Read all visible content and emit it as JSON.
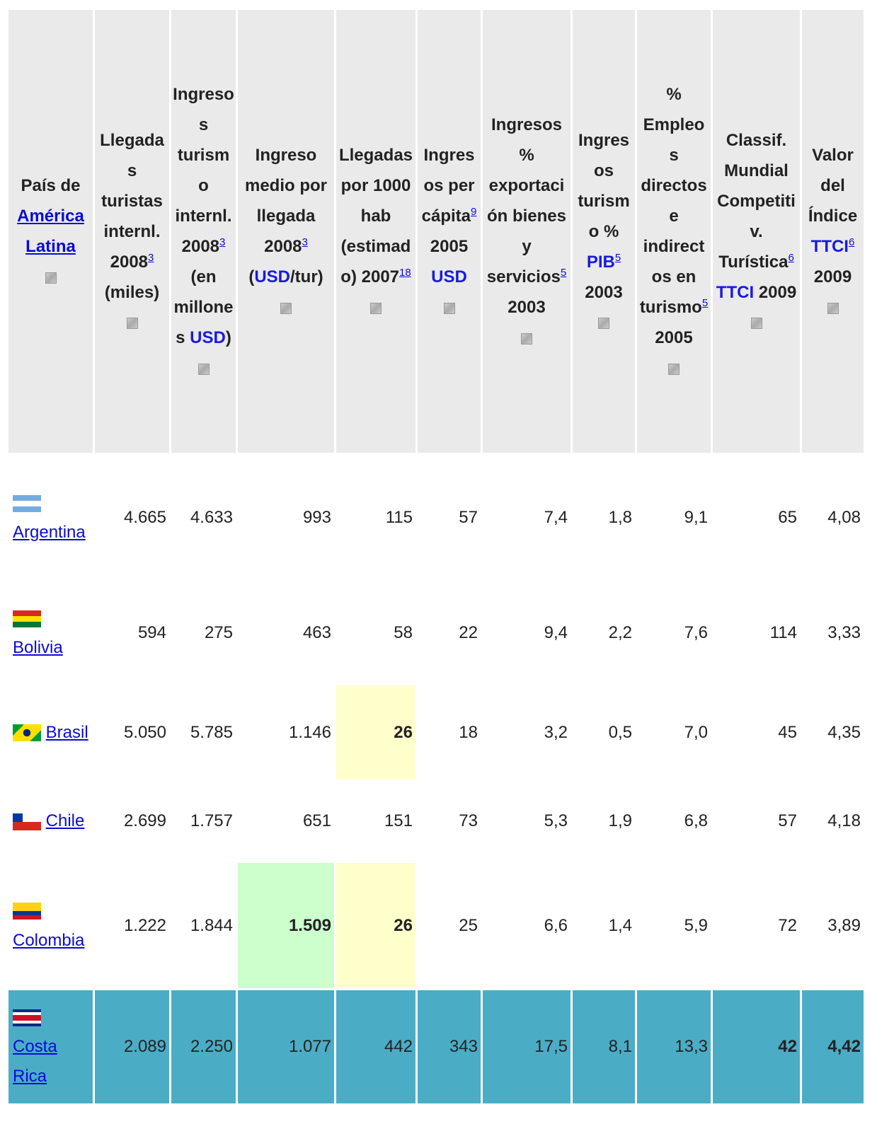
{
  "table": {
    "headers": [
      [
        {
          "text": "País de "
        },
        {
          "link": "América Latina"
        }
      ],
      [
        {
          "text": "Llegadas turistas internl. 2008"
        },
        {
          "ref": "3"
        },
        {
          "text": " (miles)"
        }
      ],
      [
        {
          "text": "Ingresos turismo internl. 2008"
        },
        {
          "ref": "3"
        },
        {
          "text": " (en millones "
        },
        {
          "link": "USD"
        },
        {
          "text": ")"
        }
      ],
      [
        {
          "text": "Ingreso medio por llegada 2008"
        },
        {
          "ref": "3"
        },
        {
          "text": " ("
        },
        {
          "link": "USD"
        },
        {
          "text": "/tur)"
        }
      ],
      [
        {
          "text": "Llegadas por 1000 hab (estimado) 2007"
        },
        {
          "ref": "1"
        },
        {
          "ref": "8"
        }
      ],
      [
        {
          "text": "Ingresos per cápita"
        },
        {
          "ref": "9"
        },
        {
          "text": " 2005 "
        },
        {
          "link": "USD"
        }
      ],
      [
        {
          "text": "Ingresos % exportación bienes y servicios"
        },
        {
          "ref": "5"
        },
        {
          "text": " 2003"
        }
      ],
      [
        {
          "text": "Ingresos turismo % "
        },
        {
          "link": "PIB"
        },
        {
          "ref": "5"
        },
        {
          "text": " 2003"
        }
      ],
      [
        {
          "text": "% Empleos directos e indirectos en turismo"
        },
        {
          "ref": "5"
        },
        {
          "text": " 2005"
        }
      ],
      [
        {
          "text": "Classif. Mundial Competitiv. Turística"
        },
        {
          "ref": "6"
        },
        {
          "link": "TTCI"
        },
        {
          "text": " 2009"
        }
      ],
      [
        {
          "text": "Valor del Índice "
        },
        {
          "link": "TTCI"
        },
        {
          "ref": "6"
        },
        {
          "text": " 2009"
        }
      ]
    ],
    "rows": [
      {
        "country": "Argentina",
        "cells": [
          "4.665",
          "4.633",
          "993",
          "115",
          "57",
          "7,4",
          "1,8",
          "9,1",
          "65",
          "4,08"
        ]
      },
      {
        "country": "Bolivia",
        "cells": [
          "594",
          "275",
          "463",
          "58",
          "22",
          "9,4",
          "2,2",
          "7,6",
          "114",
          "3,33"
        ]
      },
      {
        "country": "Brasil",
        "cells": [
          "5.050",
          "5.785",
          "1.146",
          "26",
          "18",
          "3,2",
          "0,5",
          "7,0",
          "45",
          "4,35"
        ],
        "cell_colors": [
          null,
          null,
          null,
          "#ffffcc",
          null,
          null,
          null,
          null,
          null,
          null
        ],
        "bold": [
          false,
          false,
          false,
          true,
          false,
          false,
          false,
          false,
          false,
          false
        ]
      },
      {
        "country": "Chile",
        "cells": [
          "2.699",
          "1.757",
          "651",
          "151",
          "73",
          "5,3",
          "1,9",
          "6,8",
          "57",
          "4,18"
        ]
      },
      {
        "country": "Colombia",
        "cells": [
          "1.222",
          "1.844",
          "1.509",
          "26",
          "25",
          "6,6",
          "1,4",
          "5,9",
          "72",
          "3,89"
        ],
        "cell_colors": [
          null,
          null,
          "#ccffcc",
          "#ffffcc",
          null,
          null,
          null,
          null,
          null,
          null
        ],
        "bold": [
          false,
          false,
          true,
          true,
          false,
          false,
          false,
          false,
          false,
          false
        ]
      },
      {
        "country": "Costa Rica",
        "cells": [
          "2.089",
          "2.250",
          "1.077",
          "442",
          "343",
          "17,5",
          "8,1",
          "13,3",
          "42",
          "4,42"
        ],
        "row_color": "#4bacc6",
        "bold": [
          false,
          false,
          false,
          false,
          false,
          false,
          false,
          false,
          true,
          true
        ]
      }
    ]
  }
}
